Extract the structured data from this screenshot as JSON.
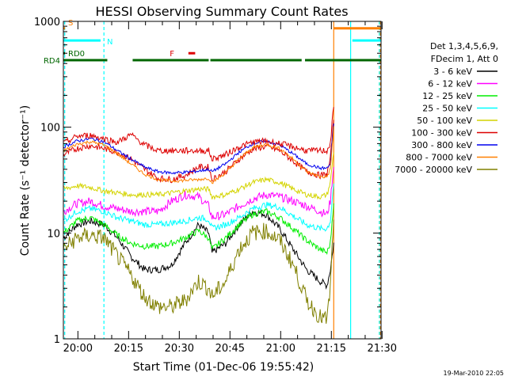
{
  "chart_data": {
    "type": "line",
    "title": "HESSI Observing Summary Count Rates",
    "xlabel": "Start Time (01-Dec-06 19:55:42)",
    "ylabel": "Count Rate (s⁻¹ detector⁻¹)",
    "x_unit": "minutes after 19:55:42",
    "xlim": [
      0,
      94
    ],
    "ylim": [
      1,
      1000
    ],
    "yscale": "log",
    "x_tick_labels": [
      "20:00",
      "20:15",
      "20:30",
      "20:45",
      "21:00",
      "21:15",
      "21:30"
    ],
    "x_ticks": [
      4.3,
      19.3,
      34.3,
      49.3,
      64.3,
      79.3,
      94.3
    ],
    "y_tick_labels": [
      "1",
      "10",
      "100",
      "1000"
    ],
    "y_ticks": [
      1,
      10,
      100,
      1000
    ],
    "legend_header": [
      "Det 1,3,4,5,6,9,",
      "FDecim 1, Att 0"
    ],
    "legend_placement": "right",
    "footer": "19-Mar-2010 22:05",
    "flag_labels": [
      "S",
      "N",
      "F",
      "RD0",
      "RD4"
    ],
    "flags": [
      {
        "label": "S",
        "color": "#ff8000",
        "y": 860,
        "segments": [
          [
            0,
            0.5
          ],
          [
            80,
            94
          ]
        ]
      },
      {
        "label": "N",
        "color": "#00ffff",
        "y": 660,
        "segments": [
          [
            0,
            11
          ],
          [
            85.5,
            94
          ]
        ]
      },
      {
        "label": "F",
        "color": "#dd0000",
        "y": 500,
        "segments": [
          [
            37,
            39
          ]
        ]
      },
      {
        "label": "RD0",
        "color": "#006600",
        "y": 500,
        "segments": [
          [
            0,
            0.5
          ]
        ]
      },
      {
        "label": "RD4",
        "color": "#006600",
        "y": 430,
        "segments": [
          [
            0,
            13
          ],
          [
            20.5,
            43
          ],
          [
            43.5,
            70.5
          ],
          [
            71.5,
            94
          ]
        ]
      }
    ],
    "vlines": [
      {
        "x": 0.4,
        "color": "#00ffff",
        "dashed": true
      },
      {
        "x": 12,
        "color": "#00ffff",
        "dashed": true
      },
      {
        "x": 80,
        "color": "#ff8000",
        "dashed": false
      },
      {
        "x": 85,
        "color": "#00ffff",
        "dashed": false
      },
      {
        "x": 93.5,
        "color": "#00ffff",
        "dashed": true
      },
      {
        "x": 93.8,
        "color": "#ff8000",
        "dashed": true
      }
    ],
    "x": [
      0,
      4,
      8,
      12,
      16,
      20,
      24,
      28,
      32,
      36,
      40,
      43,
      44,
      48,
      52,
      56,
      60,
      64,
      68,
      72,
      76,
      78,
      79,
      80
    ],
    "series": [
      {
        "name": "3 - 6 keV",
        "color": "#000000",
        "noise": 0.035,
        "values": [
          9,
          12,
          13,
          12,
          9,
          6,
          4.5,
          4.5,
          5,
          8,
          12,
          10,
          6.5,
          8,
          12,
          16,
          15,
          11,
          7,
          4.5,
          3.5,
          3.2,
          4.5,
          8
        ]
      },
      {
        "name": "6 - 12 keV",
        "color": "#ff00ff",
        "noise": 0.04,
        "values": [
          16,
          19,
          20,
          18,
          17,
          16,
          16,
          16,
          20,
          23,
          22,
          18,
          14,
          15,
          18,
          21,
          23,
          22,
          20,
          18,
          16,
          15,
          20,
          45
        ]
      },
      {
        "name": "12 - 25 keV",
        "color": "#00ee00",
        "noise": 0.03,
        "values": [
          10,
          13,
          14,
          12,
          9.5,
          8,
          7.5,
          7.5,
          8,
          9,
          10.5,
          9,
          7,
          9,
          12,
          15,
          16,
          14,
          11,
          8.5,
          7,
          6.5,
          8,
          20
        ]
      },
      {
        "name": "25 - 50 keV",
        "color": "#00ffff",
        "noise": 0.03,
        "values": [
          13,
          16,
          17,
          16,
          14,
          13,
          12,
          12,
          12.5,
          13,
          14,
          13.5,
          11,
          12,
          14,
          17,
          18.5,
          17.5,
          14.5,
          12,
          11,
          11,
          13,
          30
        ]
      },
      {
        "name": "50 - 100 keV",
        "color": "#d4d400",
        "noise": 0.025,
        "values": [
          26,
          28,
          27,
          25,
          24,
          23,
          23,
          23,
          24,
          25,
          26,
          26,
          22,
          23,
          26,
          30,
          32,
          30,
          26,
          23,
          22,
          23,
          30,
          60
        ]
      },
      {
        "name": "100 - 300 keV",
        "color": "#dd0000",
        "noise": 0.03,
        "values": [
          55,
          63,
          67,
          63,
          58,
          50,
          40,
          33,
          32,
          35,
          42,
          42,
          32,
          38,
          50,
          62,
          66,
          60,
          48,
          38,
          35,
          36,
          50,
          120
        ]
      },
      {
        "name": "300 - 800 keV",
        "color": "#0000ee",
        "noise": 0.015,
        "values": [
          65,
          74,
          78,
          73,
          60,
          50,
          42,
          38,
          37,
          37.5,
          38.5,
          40,
          38,
          45,
          58,
          70,
          74,
          68,
          56,
          45,
          41,
          41,
          45,
          110
        ]
      },
      {
        "name": "800 - 7000 keV",
        "color": "#ff8000",
        "noise": 0.015,
        "values": [
          60,
          69,
          73,
          68,
          56,
          45,
          36,
          32,
          31,
          31.5,
          32,
          33,
          30,
          37,
          50,
          64,
          69,
          63,
          50,
          38,
          34,
          34,
          40,
          100
        ]
      },
      {
        "name": "7000 - 20000 keV",
        "color": "#808000",
        "noise": 0.08,
        "values": [
          7,
          9,
          9.5,
          9,
          6,
          4,
          2.5,
          2,
          2,
          2.3,
          3.5,
          3,
          2.5,
          3.5,
          7,
          10,
          10.5,
          8.5,
          5,
          2.3,
          1.6,
          1.5,
          3,
          15
        ]
      }
    ],
    "offset_series": {
      "name": "100 - 300 keV",
      "color": "#dd0000",
      "noise": 0.03,
      "values": [
        70,
        82,
        84,
        78,
        72,
        85,
        68,
        60,
        60,
        60,
        60,
        60,
        50,
        55,
        65,
        72,
        74,
        70,
        65,
        60,
        60,
        60,
        70,
        160
      ]
    }
  }
}
